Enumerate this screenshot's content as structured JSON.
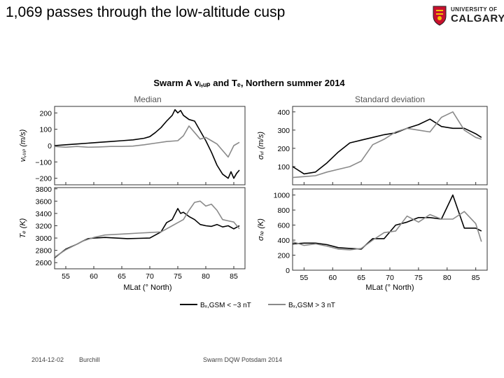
{
  "slide": {
    "title": "1,069 passes through the low-altitude cusp",
    "logo_line1": "UNIVERSITY OF",
    "logo_line2": "CALGARY",
    "logo_color": "#c8102e",
    "footer_date": "2014-12-02",
    "footer_author": "Burchill",
    "footer_event": "Swarm DQW Potsdam 2014"
  },
  "chart_data": {
    "title": "Swarm A vᵢ,ᵤₚ and Tₑ, Northern summer 2014",
    "column_titles": [
      "Median",
      "Standard deviation"
    ],
    "xlabel": "MLat (° North)",
    "xlim": [
      53,
      87
    ],
    "xticks": [
      55,
      60,
      65,
      70,
      75,
      80,
      85
    ],
    "legend": [
      {
        "label": "Bₓ,GSM < −3 nT",
        "color": "#000000"
      },
      {
        "label": "Bₓ,GSM > 3 nT",
        "color": "#8a8a8a"
      }
    ],
    "panels": [
      {
        "id": "median-vi",
        "type": "line",
        "ylabel": "vᵢ,ᵤₚ (m/s)",
        "ylim": [
          -240,
          240
        ],
        "yticks": [
          -200,
          -100,
          0,
          100,
          200
        ],
        "ytick_labels": [
          "−200",
          "−100",
          "0",
          "100",
          "200"
        ],
        "series": [
          {
            "name": "Bx < -3 nT",
            "color": "#000000",
            "x": [
              53,
              55,
              57,
              59,
              61,
              63,
              65,
              67,
              69,
              70,
              71,
              72,
              73,
              74,
              74.5,
              75,
              75.5,
              76,
              77,
              78,
              79,
              80,
              81,
              82,
              83,
              84,
              84.5,
              85,
              85.5,
              86
            ],
            "y": [
              0,
              5,
              10,
              15,
              20,
              25,
              30,
              35,
              45,
              55,
              80,
              110,
              150,
              185,
              220,
              200,
              215,
              185,
              160,
              150,
              90,
              30,
              -40,
              -120,
              -175,
              -200,
              -160,
              -200,
              -170,
              -150
            ]
          },
          {
            "name": "Bx > 3 nT",
            "color": "#8a8a8a",
            "x": [
              53,
              55,
              57,
              59,
              61,
              63,
              65,
              67,
              69,
              71,
              73,
              75,
              76,
              77,
              78,
              79,
              80,
              81,
              82,
              83,
              84,
              85,
              86
            ],
            "y": [
              -5,
              -10,
              -5,
              -10,
              -8,
              -5,
              -5,
              -3,
              5,
              15,
              25,
              30,
              60,
              120,
              80,
              40,
              50,
              30,
              10,
              -30,
              -70,
              0,
              20
            ]
          }
        ]
      },
      {
        "id": "median-te",
        "type": "line",
        "ylabel": "Tₑ (K)",
        "ylim": [
          2500,
          3820
        ],
        "yticks": [
          2600,
          2800,
          3000,
          3200,
          3400,
          3600,
          3800
        ],
        "ytick_labels": [
          "2600",
          "2800",
          "3000",
          "3200",
          "3400",
          "3600",
          "3800"
        ],
        "series": [
          {
            "name": "Bx < -3 nT",
            "color": "#000000",
            "x": [
              53,
              55,
              57,
              58,
              59,
              60,
              62,
              64,
              66,
              68,
              70,
              71,
              72,
              73,
              74,
              75,
              75.5,
              76,
              77,
              78,
              79,
              80,
              81,
              82,
              83,
              84,
              85,
              86
            ],
            "y": [
              2680,
              2820,
              2900,
              2950,
              2990,
              3000,
              3010,
              3000,
              2990,
              2995,
              3000,
              3050,
              3100,
              3250,
              3300,
              3480,
              3400,
              3420,
              3350,
              3300,
              3220,
              3200,
              3190,
              3220,
              3180,
              3200,
              3150,
              3200
            ]
          },
          {
            "name": "Bx > 3 nT",
            "color": "#8a8a8a",
            "x": [
              53,
              55,
              57,
              58,
              60,
              62,
              64,
              66,
              68,
              70,
              72,
              73,
              74,
              75,
              76,
              77,
              78,
              79,
              80,
              81,
              82,
              83,
              84,
              85,
              86
            ],
            "y": [
              2690,
              2810,
              2900,
              2950,
              3010,
              3050,
              3060,
              3070,
              3080,
              3090,
              3100,
              3150,
              3200,
              3250,
              3300,
              3450,
              3580,
              3600,
              3520,
              3550,
              3450,
              3300,
              3280,
              3260,
              3150
            ]
          }
        ]
      },
      {
        "id": "std-vi",
        "type": "line",
        "ylabel": "σᵥᵢ (m/s)",
        "ylim": [
          0,
          430
        ],
        "yticks": [
          100,
          200,
          300,
          400
        ],
        "ytick_labels": [
          "100",
          "200",
          "300",
          "400"
        ],
        "series": [
          {
            "name": "Bx < -3 nT",
            "color": "#000000",
            "x": [
              53,
              55,
              57,
              59,
              61,
              63,
              65,
              67,
              69,
              71,
              73,
              75,
              77,
              79,
              81,
              83,
              85,
              86
            ],
            "y": [
              100,
              60,
              70,
              120,
              180,
              230,
              245,
              260,
              275,
              285,
              310,
              330,
              360,
              320,
              310,
              310,
              280,
              260
            ]
          },
          {
            "name": "Bx > 3 nT",
            "color": "#8a8a8a",
            "x": [
              53,
              55,
              57,
              59,
              61,
              63,
              65,
              67,
              69,
              71,
              73,
              75,
              77,
              79,
              81,
              83,
              85,
              86
            ],
            "y": [
              40,
              45,
              50,
              70,
              85,
              100,
              130,
              220,
              250,
              290,
              310,
              300,
              290,
              370,
              400,
              300,
              260,
              250
            ]
          }
        ]
      },
      {
        "id": "std-te",
        "type": "line",
        "ylabel": "σₜₑ (K)",
        "ylim": [
          0,
          1080
        ],
        "yticks": [
          0,
          200,
          400,
          600,
          800,
          1000
        ],
        "ytick_labels": [
          "0",
          "200",
          "400",
          "600",
          "800",
          "1000"
        ],
        "series": [
          {
            "name": "Bx < -3 nT",
            "color": "#000000",
            "x": [
              53,
              55,
              57,
              59,
              61,
              63,
              65,
              67,
              69,
              71,
              73,
              75,
              77,
              79,
              81,
              83,
              85,
              86
            ],
            "y": [
              350,
              360,
              360,
              340,
              300,
              290,
              280,
              420,
              420,
              600,
              640,
              700,
              700,
              680,
              1000,
              560,
              560,
              520
            ]
          },
          {
            "name": "Bx > 3 nT",
            "color": "#8a8a8a",
            "x": [
              53,
              55,
              57,
              59,
              61,
              63,
              65,
              67,
              69,
              71,
              73,
              75,
              77,
              79,
              81,
              83,
              85,
              86
            ],
            "y": [
              380,
              330,
              350,
              320,
              280,
              270,
              290,
              400,
              500,
              520,
              720,
              640,
              740,
              680,
              680,
              780,
              620,
              380
            ]
          }
        ]
      }
    ]
  }
}
